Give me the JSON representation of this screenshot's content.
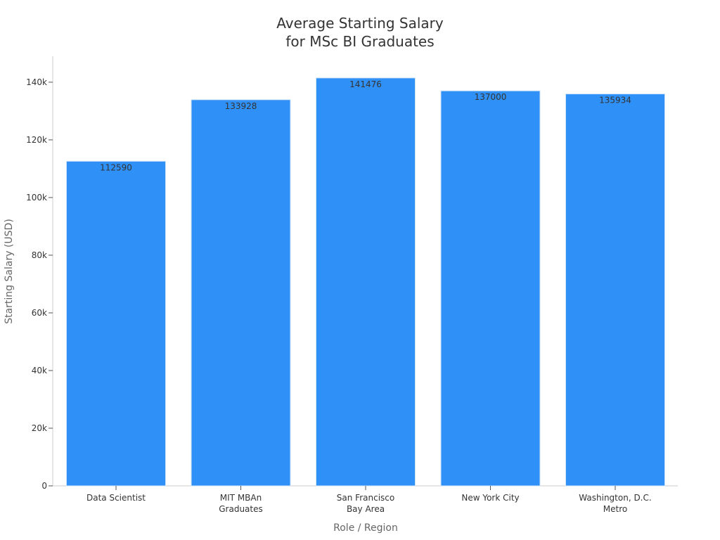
{
  "chart_data": {
    "type": "bar",
    "title": [
      "Average Starting Salary",
      "for MSc BI Graduates"
    ],
    "xlabel": "Role / Region",
    "ylabel": "Starting Salary (USD)",
    "categories": [
      [
        "Data Scientist"
      ],
      [
        "MIT MBAn",
        "Graduates"
      ],
      [
        "San Francisco",
        "Bay Area"
      ],
      [
        "New York City"
      ],
      [
        "Washington, D.C.",
        "Metro"
      ]
    ],
    "values": [
      112590,
      133928,
      141476,
      137000,
      135934
    ],
    "data_labels": [
      "112590",
      "133928",
      "141476",
      "137000",
      "135934"
    ],
    "ylim": [
      0,
      149000
    ],
    "yticks": [
      0,
      20000,
      40000,
      60000,
      80000,
      100000,
      120000,
      140000
    ],
    "ytick_labels": [
      "0",
      "20k",
      "40k",
      "60k",
      "80k",
      "100k",
      "120k",
      "140k"
    ],
    "bar_color": "#2f91f7",
    "grid": false,
    "legend": "none"
  }
}
